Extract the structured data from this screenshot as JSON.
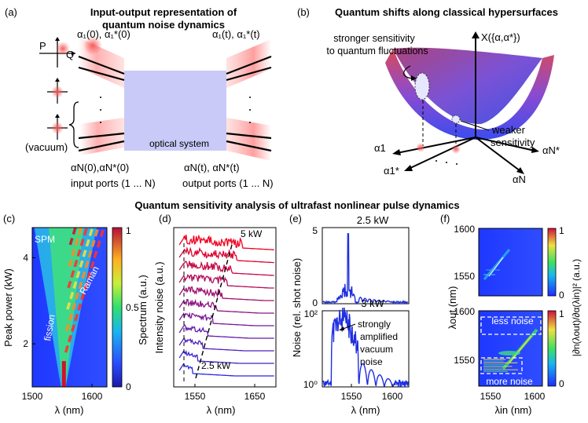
{
  "panel_a": {
    "letter": "(a)",
    "title_line1": "Input-output representation of",
    "title_line2": "quantum noise dynamics",
    "axis_p": "P",
    "axis_q": "Q",
    "input_top": "α₁(0), α₁*(0)",
    "output_top": "α₁(t), α₁*(t)",
    "box_label": "optical system",
    "vacuum": "(vacuum)",
    "input_bottom": "αN(0),αN*(0)",
    "output_bottom": "αN(t), αN*(t)",
    "input_ports": "input ports (1 ... N)",
    "output_ports": "output ports (1 ... N)"
  },
  "panel_b": {
    "letter": "(b)",
    "title": "Quantum shifts along classical hypersurfaces",
    "stronger_line1": "stronger sensitivity",
    "stronger_line2": "to quantum fluctuations",
    "x_label": "X({α,α*})",
    "weaker_line1": "weaker",
    "weaker_line2": "sensitivity",
    "axis_a1": "α1",
    "axis_a1s": "α1*",
    "axis_aN": "αN",
    "axis_aNs": "αN*"
  },
  "section_title": "Quantum sensitivity analysis of ultrafast nonlinear pulse dynamics",
  "panel_c": {
    "letter": "(c)",
    "chart_data": {
      "type": "heatmap",
      "xlabel": "λ (nm)",
      "ylabel": "Peak power (kW)",
      "xlim": [
        1500,
        1625
      ],
      "ylim": [
        1,
        4.7
      ],
      "x_ticks": [
        "1500",
        "1600"
      ],
      "y_ticks": [
        "2",
        "4"
      ],
      "colorbar_label": "Spectrum (a.u.)",
      "colorbar_ticks": [
        "0",
        "0.5",
        "1"
      ],
      "annotations": [
        "SPM",
        "fission",
        "Raman"
      ]
    }
  },
  "panel_d": {
    "letter": "(d)",
    "chart_data": {
      "type": "line",
      "xlabel": "λ (nm)",
      "ylabel": "Intensity noise (a.u.)",
      "xlim": [
        1525,
        1670
      ],
      "x_ticks": [
        "1550",
        "1650"
      ],
      "series_count": 11,
      "annotations": [
        "5 kW",
        "2.5 kW"
      ]
    }
  },
  "panel_e": {
    "letter": "(e)",
    "ylabel": "Noise (rel. shot noise)",
    "xlabel": "λ (nm)",
    "top": {
      "chart_data": {
        "type": "line",
        "title": "2.5 kW",
        "xlim": [
          1515,
          1622
        ],
        "ylim": [
          0,
          5
        ],
        "y_ticks": [
          "5",
          "0"
        ],
        "peak": {
          "x": 1547,
          "y": 4.6
        }
      }
    },
    "bottom": {
      "chart_data": {
        "type": "line",
        "title": "3 kW",
        "xlim": [
          1515,
          1622
        ],
        "ylim": [
          0,
          100
        ],
        "y_ticks": [
          "10²",
          "10⁰"
        ],
        "x_ticks": [
          "1550",
          "1600"
        ],
        "annotation_line1": "strongly",
        "annotation_line2": "amplified",
        "annotation_line3": "vacuum",
        "annotation_line4": "noise"
      }
    }
  },
  "panel_f": {
    "letter": "(f)",
    "chart_data": {
      "type": "heatmap",
      "xlabel": "λin (nm)",
      "ylabel": "λout (nm)",
      "x_ticks": [
        "1550",
        "1600"
      ],
      "y_ticks": [
        "1600",
        "1550"
      ],
      "colorbar_ticks": [
        "1",
        "0"
      ],
      "colorbar_label": "|∂n(λout)/∂α(λin)|² (a.u.)",
      "annotations": [
        "less noise",
        "more noise"
      ]
    }
  }
}
